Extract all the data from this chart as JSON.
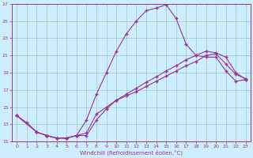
{
  "xlabel": "Windchill (Refroidissement éolien,°C)",
  "bg_color": "#cceeff",
  "grid_color": "#aacccc",
  "line_color": "#993399",
  "xlim": [
    -0.5,
    23.5
  ],
  "ylim": [
    11,
    27
  ],
  "yticks": [
    11,
    13,
    15,
    17,
    19,
    21,
    23,
    25,
    27
  ],
  "xticks": [
    0,
    1,
    2,
    3,
    4,
    5,
    6,
    7,
    8,
    9,
    10,
    11,
    12,
    13,
    14,
    15,
    16,
    17,
    18,
    19,
    20,
    21,
    22,
    23
  ],
  "curve1_x": [
    0,
    1,
    2,
    3,
    4,
    5,
    6,
    7,
    8,
    9,
    10,
    11,
    12,
    13,
    14,
    15,
    16,
    17,
    18,
    19,
    20,
    21,
    22,
    23
  ],
  "curve1_y": [
    14.0,
    13.2,
    12.1,
    11.7,
    11.4,
    11.4,
    11.7,
    13.5,
    16.5,
    19.0,
    21.5,
    23.5,
    25.0,
    26.2,
    26.5,
    26.9,
    25.3,
    22.3,
    21.0,
    20.8,
    20.8,
    19.2,
    18.0,
    18.2
  ],
  "curve2_x": [
    0,
    2,
    3,
    4,
    5,
    6,
    7,
    8,
    9,
    10,
    11,
    12,
    13,
    14,
    15,
    16,
    17,
    18,
    19,
    20,
    21,
    22,
    23
  ],
  "curve2_y": [
    14.0,
    12.1,
    11.7,
    11.4,
    11.4,
    11.7,
    11.7,
    13.5,
    14.8,
    15.8,
    16.5,
    17.2,
    17.9,
    18.5,
    19.2,
    19.8,
    20.5,
    21.0,
    21.5,
    21.3,
    20.8,
    19.0,
    18.2
  ],
  "curve3_x": [
    0,
    2,
    3,
    4,
    5,
    6,
    7,
    8,
    9,
    10,
    11,
    12,
    13,
    14,
    15,
    16,
    17,
    18,
    19,
    20,
    21,
    22,
    23
  ],
  "curve3_y": [
    14.0,
    12.1,
    11.7,
    11.4,
    11.4,
    11.7,
    12.0,
    14.2,
    15.0,
    15.8,
    16.3,
    16.8,
    17.4,
    18.0,
    18.6,
    19.2,
    19.8,
    20.3,
    21.0,
    21.2,
    20.0,
    18.8,
    18.3
  ]
}
